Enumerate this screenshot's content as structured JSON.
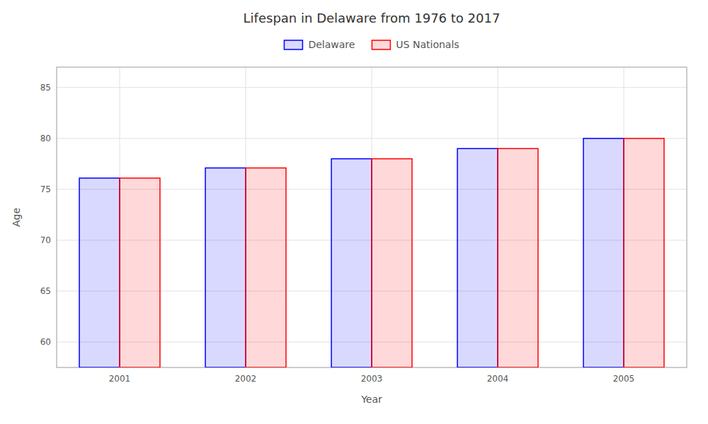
{
  "chart_data": {
    "type": "bar",
    "title": "Lifespan in Delaware from 1976 to 2017",
    "x_label": "Year",
    "y_label": "Age",
    "categories": [
      "2001",
      "2002",
      "2003",
      "2004",
      "2005"
    ],
    "series": [
      {
        "name": "Delaware",
        "color": "#0000ff",
        "values": [
          76.1,
          77.1,
          78.0,
          79.0,
          80.0
        ]
      },
      {
        "name": "US Nationals",
        "color": "#ff0000",
        "values": [
          76.1,
          77.1,
          78.0,
          79.0,
          80.0
        ]
      }
    ],
    "ylim": [
      57.5,
      87
    ],
    "yticks": [
      60,
      65,
      70,
      75,
      80,
      85
    ],
    "grid": true,
    "legend": "top"
  }
}
